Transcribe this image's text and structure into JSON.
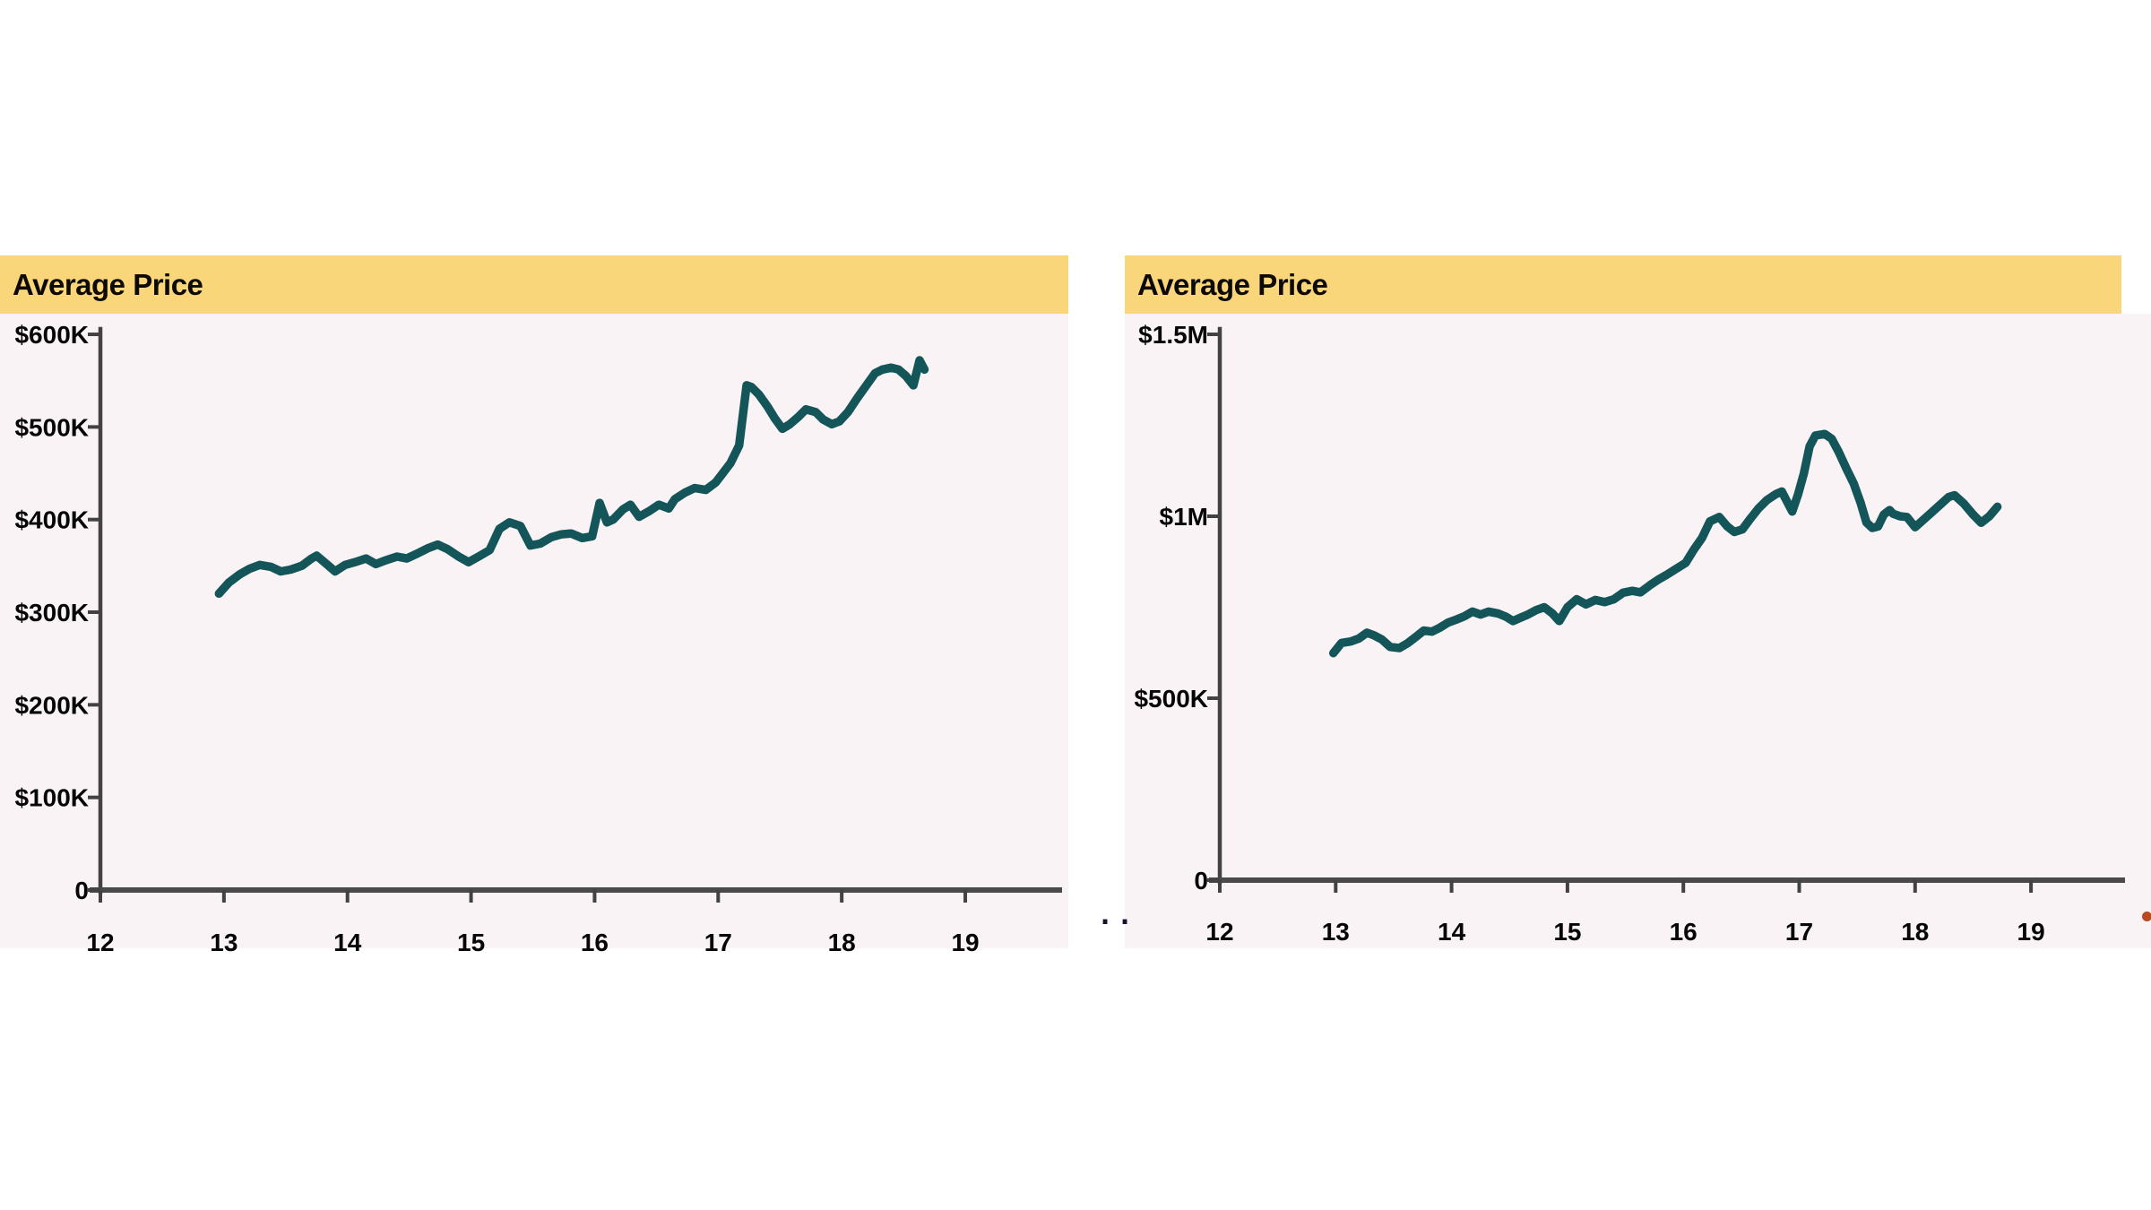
{
  "page": {
    "background": "#ffffff",
    "panel_background": "#faf3f5",
    "header_background": "#f9d679",
    "axis_color": "#424242",
    "label_color": "#060606",
    "separator_dots": "..",
    "red_dot_color": "#b84a22"
  },
  "chart_data": [
    {
      "type": "line",
      "title": "Average Price",
      "line_color": "#14555a",
      "grid": false,
      "legend": "none",
      "xlim": [
        12,
        19.8
      ],
      "ylim": [
        0,
        600
      ],
      "unit": "USD thousands",
      "x_tick_labels": [
        "12",
        "13",
        "14",
        "15",
        "16",
        "17",
        "18",
        "19"
      ],
      "x_tick_values": [
        12,
        13,
        14,
        15,
        16,
        17,
        18,
        19
      ],
      "y_tick_labels": [
        "0",
        "$100K",
        "$200K",
        "$300K",
        "$400K",
        "$500K",
        "$600K"
      ],
      "y_tick_values": [
        0,
        100,
        200,
        300,
        400,
        500,
        600
      ],
      "series": [
        {
          "name": "Average Price",
          "x": [
            12.96,
            13.04,
            13.13,
            13.21,
            13.29,
            13.38,
            13.46,
            13.54,
            13.63,
            13.71,
            13.75,
            13.83,
            13.9,
            13.98,
            14.06,
            14.15,
            14.23,
            14.31,
            14.4,
            14.48,
            14.56,
            14.65,
            14.73,
            14.81,
            14.9,
            14.98,
            15.06,
            15.15,
            15.23,
            15.31,
            15.4,
            15.48,
            15.56,
            15.65,
            15.73,
            15.81,
            15.9,
            15.98,
            16.04,
            16.1,
            16.15,
            16.23,
            16.29,
            16.36,
            16.44,
            16.52,
            16.6,
            16.65,
            16.73,
            16.81,
            16.9,
            16.98,
            17.02,
            17.1,
            17.17,
            17.23,
            17.27,
            17.33,
            17.4,
            17.46,
            17.52,
            17.58,
            17.65,
            17.71,
            17.79,
            17.85,
            17.92,
            17.98,
            18.05,
            18.13,
            18.2,
            18.27,
            18.33,
            18.4,
            18.46,
            18.52,
            18.58,
            18.63,
            18.67
          ],
          "y_thousands": [
            320,
            332,
            341,
            347,
            351,
            349,
            344,
            346,
            350,
            358,
            361,
            352,
            344,
            351,
            354,
            358,
            352,
            356,
            360,
            358,
            363,
            369,
            373,
            368,
            360,
            354,
            360,
            367,
            390,
            397,
            393,
            372,
            374,
            381,
            384,
            385,
            380,
            382,
            418,
            397,
            400,
            411,
            416,
            403,
            409,
            416,
            412,
            422,
            429,
            434,
            432,
            440,
            447,
            461,
            480,
            545,
            543,
            535,
            522,
            509,
            498,
            503,
            511,
            519,
            516,
            508,
            503,
            506,
            516,
            532,
            545,
            558,
            562,
            564,
            562,
            555,
            545,
            572,
            562
          ]
        }
      ]
    },
    {
      "type": "line",
      "title": "Average Price",
      "line_color": "#14555a",
      "grid": false,
      "legend": "none",
      "xlim": [
        12,
        19.8
      ],
      "ylim": [
        0,
        1500
      ],
      "unit": "USD thousands",
      "x_tick_labels": [
        "12",
        "13",
        "14",
        "15",
        "16",
        "17",
        "18",
        "19"
      ],
      "x_tick_values": [
        12,
        13,
        14,
        15,
        16,
        17,
        18,
        19
      ],
      "y_tick_labels": [
        "0",
        "$500K",
        "$1M",
        "$1.5M"
      ],
      "y_tick_values": [
        0,
        500,
        1000,
        1500
      ],
      "series": [
        {
          "name": "Average Price",
          "x": [
            12.98,
            13.05,
            13.13,
            13.2,
            13.27,
            13.33,
            13.4,
            13.47,
            13.55,
            13.62,
            13.69,
            13.76,
            13.83,
            13.9,
            13.97,
            14.04,
            14.11,
            14.18,
            14.25,
            14.32,
            14.4,
            14.47,
            14.53,
            14.6,
            14.66,
            14.73,
            14.8,
            14.87,
            14.93,
            15.0,
            15.08,
            15.16,
            15.24,
            15.32,
            15.4,
            15.48,
            15.56,
            15.63,
            15.71,
            15.79,
            15.86,
            15.94,
            16.02,
            16.09,
            16.16,
            16.23,
            16.31,
            16.38,
            16.44,
            16.51,
            16.58,
            16.65,
            16.72,
            16.8,
            16.85,
            16.9,
            16.94,
            16.99,
            17.04,
            17.09,
            17.14,
            17.22,
            17.28,
            17.34,
            17.41,
            17.47,
            17.53,
            17.58,
            17.63,
            17.68,
            17.73,
            17.78,
            17.81,
            17.87,
            17.93,
            18.0,
            18.07,
            18.13,
            18.21,
            18.29,
            18.34,
            18.42,
            18.5,
            18.57,
            18.64,
            18.71
          ],
          "y_thousands": [
            624,
            652,
            656,
            664,
            680,
            673,
            661,
            641,
            638,
            651,
            668,
            686,
            683,
            694,
            708,
            716,
            725,
            738,
            730,
            738,
            733,
            724,
            712,
            722,
            730,
            742,
            750,
            733,
            712,
            750,
            772,
            758,
            770,
            764,
            772,
            790,
            795,
            791,
            810,
            827,
            840,
            856,
            872,
            908,
            940,
            986,
            998,
            972,
            957,
            964,
            994,
            1022,
            1044,
            1061,
            1068,
            1037,
            1013,
            1060,
            1118,
            1192,
            1222,
            1226,
            1213,
            1177,
            1129,
            1090,
            1037,
            983,
            968,
            972,
            1005,
            1017,
            1007,
            1000,
            998,
            970,
            990,
            1007,
            1030,
            1053,
            1058,
            1035,
            1005,
            982,
            1000,
            1026
          ]
        }
      ]
    }
  ]
}
